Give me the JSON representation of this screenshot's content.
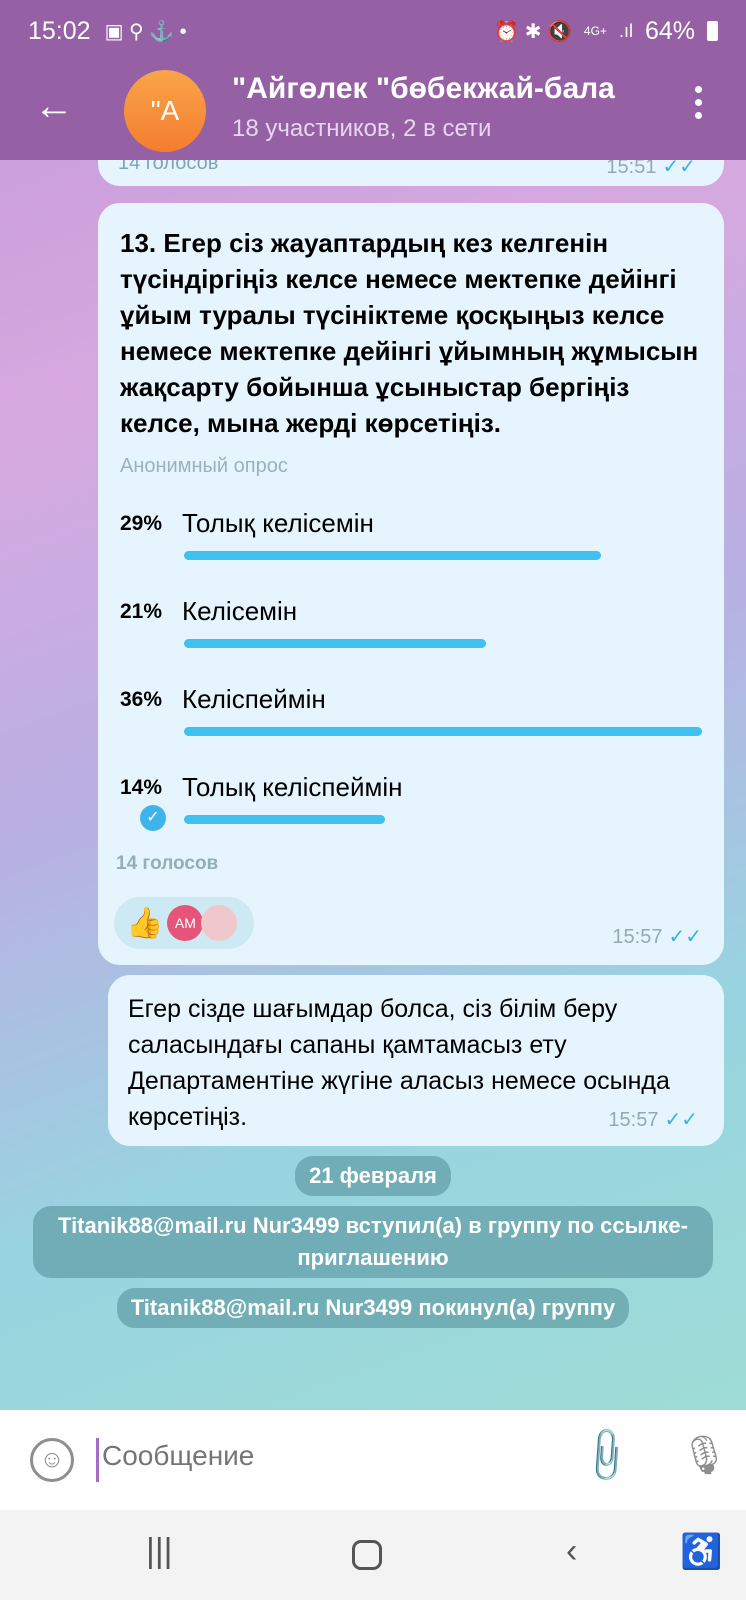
{
  "status": {
    "time": "15:02",
    "battery": "64%",
    "network": "4G+"
  },
  "header": {
    "avatar": "\"A",
    "title": "\"Айгөлек \"бөбекжай-бала",
    "subtitle": "18 участников, 2 в сети"
  },
  "prev_message": {
    "votes": "14 голосов",
    "time": "15:51"
  },
  "poll": {
    "question": "13. Егер сіз жауаптардың кез келгенін түсіндіргіңіз келсе немесе мектепке дейінгі ұйым туралы түсініктеме қосқыңыз келсе немесе мектепке дейінгі ұйымның жұмысын жақсарту бойынша ұсыныстар бергіңіз келсе, мына жерді көрсетіңіз.",
    "type": "Анонимный опрос",
    "options": [
      {
        "pct": "29%",
        "value": 29,
        "label": "Толық келісемін"
      },
      {
        "pct": "21%",
        "value": 21,
        "label": "Келісемін"
      },
      {
        "pct": "36%",
        "value": 36,
        "label": "Келіспеймін"
      },
      {
        "pct": "14%",
        "value": 14,
        "label": "Толық келіспеймін",
        "chosen": true
      }
    ],
    "votes": "14 голосов",
    "reaction": "👍",
    "reactor_initials": "AM",
    "time": "15:57"
  },
  "message2": {
    "text": "Егер сізде шағымдар болса, сіз білім беру саласындағы сапаны қамтамасыз ету Департаментіне жүгіне аласыз немесе осында көрсетіңіз.",
    "time": "15:57"
  },
  "date": "21 февраля",
  "service": [
    "Titanik88@mail.ru Nur3499 вступил(а) в группу по ссылке-приглашению",
    "Titanik88@mail.ru Nur3499 покинул(а) группу"
  ],
  "input": {
    "placeholder": "Сообщение"
  },
  "colors": {
    "header": "#9561a4",
    "bar": "#3fc0ee",
    "bubble": "#e6f5fd"
  }
}
